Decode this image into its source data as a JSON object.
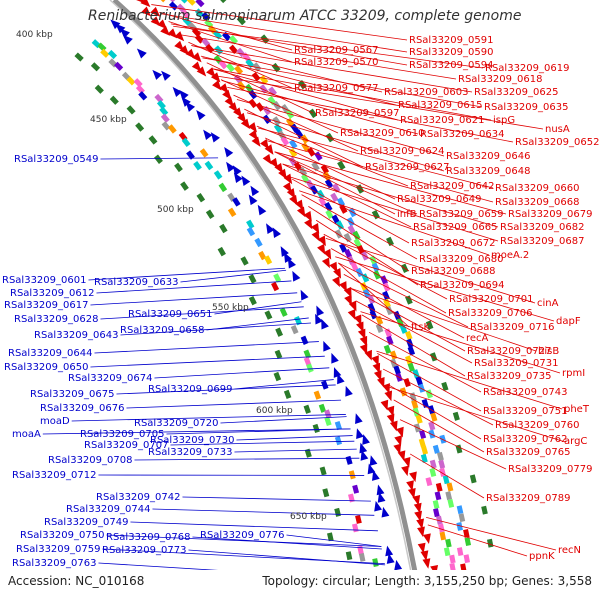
{
  "title": "Renibacterium salmoninarum ATCC 33209, complete genome",
  "footer": {
    "accession": "Accession: NC_010168",
    "summary": "Topology: circular; Length: 3,155,250 bp; Genes: 3,558"
  },
  "colors": {
    "forward": "#e00000",
    "reverse": "#0000cc",
    "backbone": "#909090",
    "tick": "#2a7a2a",
    "title": "#333333"
  },
  "kbp_ticks": [
    "400 kbp",
    "450 kbp",
    "500 kbp",
    "550 kbp",
    "600 kbp",
    "650 kbp"
  ],
  "red_labels": [
    "RSal33209_0591",
    "RSal33209_0567",
    "RSal33209_0590",
    "RSal33209_0570",
    "RSal33209_0594",
    "RSal33209_0619",
    "RSal33209_0618",
    "RSal33209_0577",
    "RSal33209_0603",
    "RSal33209_0625",
    "RSal33209_0615",
    "RSal33209_0635",
    "RSal33209_0597",
    "RSal33209_0621",
    "ispG",
    "nusA",
    "RSal33209_0610",
    "RSal33209_0634",
    "RSal33209_0652",
    "RSal33209_0624",
    "RSal33209_0646",
    "RSal33209_0627",
    "RSal33209_0648",
    "RSal33209_0642",
    "RSal33209_0660",
    "RSal33209_0649",
    "RSal33209_0668",
    "infB",
    "RSal33209_0659",
    "RSal33209_0679",
    "RSal33209_0665",
    "RSal33209_0682",
    "RSal33209_0687",
    "RSal33209_0672",
    "moeA.2",
    "RSal33209_0680",
    "RSal33209_0688",
    "RSal33209_0694",
    "RSal33209_0701",
    "cinA",
    "RSal33209_0706",
    "dapF",
    "ftsK",
    "RSal33209_0716",
    "recA",
    "hisB",
    "RSal33209_0727",
    "RSal33209_0731",
    "rpmI",
    "RSal33209_0735",
    "RSal33209_0743",
    "pheT",
    "RSal33209_0751",
    "RSal33209_0760",
    "argC",
    "RSal33209_0762",
    "RSal33209_0765",
    "RSal33209_0779",
    "RSal33209_0789",
    "recN",
    "ppnK"
  ],
  "blue_labels": [
    "RSal33209_0549",
    "RSal33209_0601",
    "RSal33209_0633",
    "RSal33209_0612",
    "RSal33209_0617",
    "RSal33209_0628",
    "RSal33209_0651",
    "RSal33209_0658",
    "RSal33209_0643",
    "RSal33209_0644",
    "RSal33209_0650",
    "RSal33209_0674",
    "RSal33209_0675",
    "RSal33209_0699",
    "RSal33209_0676",
    "moaD",
    "RSal33209_0720",
    "RSal33209_0705",
    "moaA",
    "RSal33209_0707",
    "RSal33209_0730",
    "RSal33209_0708",
    "RSal33209_0733",
    "RSal33209_0712",
    "RSal33209_0742",
    "RSal33209_0744",
    "RSal33209_0749",
    "RSal33209_0750",
    "RSal33209_0768",
    "RSal33209_0776",
    "RSal33209_0759",
    "RSal33209_0773",
    "RSal33209_0763"
  ]
}
